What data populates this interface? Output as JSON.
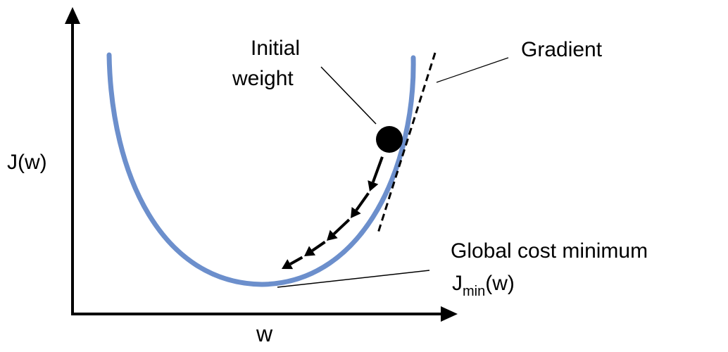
{
  "diagram": {
    "title": "",
    "axis": {
      "y_label": "J(w)",
      "x_label": "w"
    },
    "labels": {
      "initial_weight_line1": "Initial",
      "initial_weight_line2": "weight",
      "gradient": "Gradient",
      "global_min": "Global cost minimum",
      "jmin_main": "J",
      "jmin_sub": "min",
      "jmin_arg": "(w)"
    },
    "colors": {
      "curve": "#6c8fcc",
      "ink": "#000000",
      "background": "#ffffff"
    },
    "gradient_steps": 5
  }
}
